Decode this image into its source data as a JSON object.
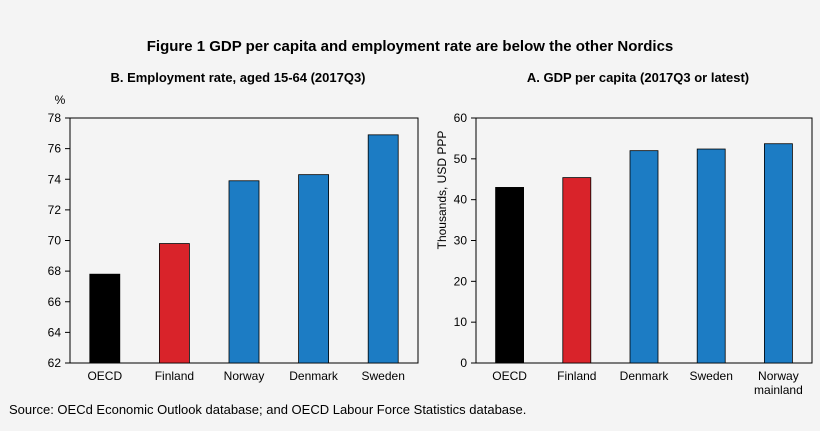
{
  "figure_title": "Figure 1 GDP per capita and employment rate are below the other Nordics",
  "source": "Source: OECd Economic Outlook database; and OECD Labour Force Statistics database.",
  "colors": {
    "oecd": "#000000",
    "finland": "#d9232a",
    "nordic": "#1c7cc4"
  },
  "chart_data": [
    {
      "type": "bar",
      "title": "B. Employment rate, aged 15-64 (2017Q3)",
      "ylabel": "%",
      "xlabel": "",
      "categories": [
        "OECD",
        "Finland",
        "Norway",
        "Denmark",
        "Sweden"
      ],
      "values": [
        67.8,
        69.8,
        73.9,
        74.3,
        76.9
      ],
      "bar_colors": [
        "#000000",
        "#d9232a",
        "#1c7cc4",
        "#1c7cc4",
        "#1c7cc4"
      ],
      "ylim": [
        62,
        78
      ],
      "yticks": [
        62,
        64,
        66,
        68,
        70,
        72,
        74,
        76,
        78
      ],
      "grid": false,
      "legend": "none"
    },
    {
      "type": "bar",
      "title": "A. GDP per  capita (2017Q3 or latest)",
      "ylabel": "Thousands, USD  PPP",
      "xlabel": "",
      "categories": [
        "OECD",
        "Finland",
        "Denmark",
        "Sweden",
        "Norway mainland"
      ],
      "category_lines": [
        [
          "OECD"
        ],
        [
          "Finland"
        ],
        [
          "Denmark"
        ],
        [
          "Sweden"
        ],
        [
          "Norway",
          "mainland"
        ]
      ],
      "values": [
        43.0,
        45.4,
        52.0,
        52.4,
        53.7
      ],
      "bar_colors": [
        "#000000",
        "#d9232a",
        "#1c7cc4",
        "#1c7cc4",
        "#1c7cc4"
      ],
      "ylim": [
        0,
        60
      ],
      "yticks": [
        0,
        10,
        20,
        30,
        40,
        50,
        60
      ],
      "grid": false,
      "legend": "none"
    }
  ]
}
